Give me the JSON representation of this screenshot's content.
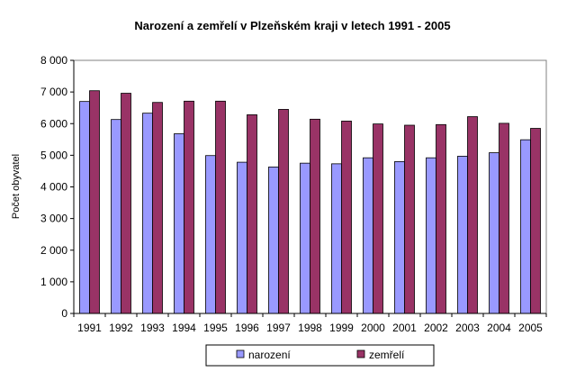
{
  "chart_data": {
    "type": "bar",
    "title": "Narození a zemřelí v Plzeňském kraji v letech 1991 - 2005",
    "xlabel": "",
    "ylabel": "Počet obyvatel",
    "ylim": [
      0,
      8000
    ],
    "yticks": [
      0,
      1000,
      2000,
      3000,
      4000,
      5000,
      6000,
      7000,
      8000
    ],
    "ytick_labels": [
      "0",
      "1 000",
      "2 000",
      "3 000",
      "4 000",
      "5 000",
      "6 000",
      "7 000",
      "8 000"
    ],
    "grid": false,
    "legend_position": "bottom",
    "categories": [
      "1991",
      "1992",
      "1993",
      "1994",
      "1995",
      "1996",
      "1997",
      "1998",
      "1999",
      "2000",
      "2001",
      "2002",
      "2003",
      "2004",
      "2005"
    ],
    "series": [
      {
        "name": "narození",
        "color": "#9999ff",
        "values": [
          6700,
          6130,
          6330,
          5680,
          4990,
          4780,
          4630,
          4750,
          4730,
          4920,
          4800,
          4920,
          4970,
          5080,
          5490
        ]
      },
      {
        "name": "zemřelí",
        "color": "#993366",
        "values": [
          7040,
          6960,
          6670,
          6710,
          6710,
          6280,
          6450,
          6140,
          6080,
          5990,
          5950,
          5970,
          6220,
          6010,
          5850
        ]
      }
    ]
  }
}
